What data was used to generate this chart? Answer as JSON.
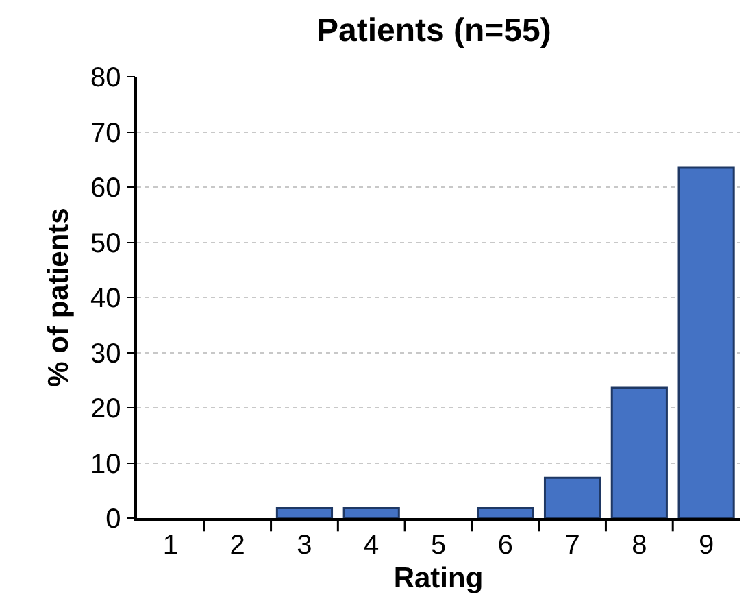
{
  "chart_data": {
    "type": "bar",
    "title": "Patients (n=55)",
    "xlabel": "Rating",
    "ylabel": "% of patients",
    "categories": [
      "1",
      "2",
      "3",
      "4",
      "5",
      "6",
      "7",
      "8",
      "9"
    ],
    "values": [
      0,
      0,
      1.8,
      1.8,
      0,
      1.8,
      7.3,
      23.6,
      63.6
    ],
    "color": "#4472c4",
    "ylim": [
      0,
      80
    ],
    "yticks": [
      0,
      10,
      20,
      30,
      40,
      50,
      60,
      70,
      80
    ],
    "grid": "y"
  }
}
